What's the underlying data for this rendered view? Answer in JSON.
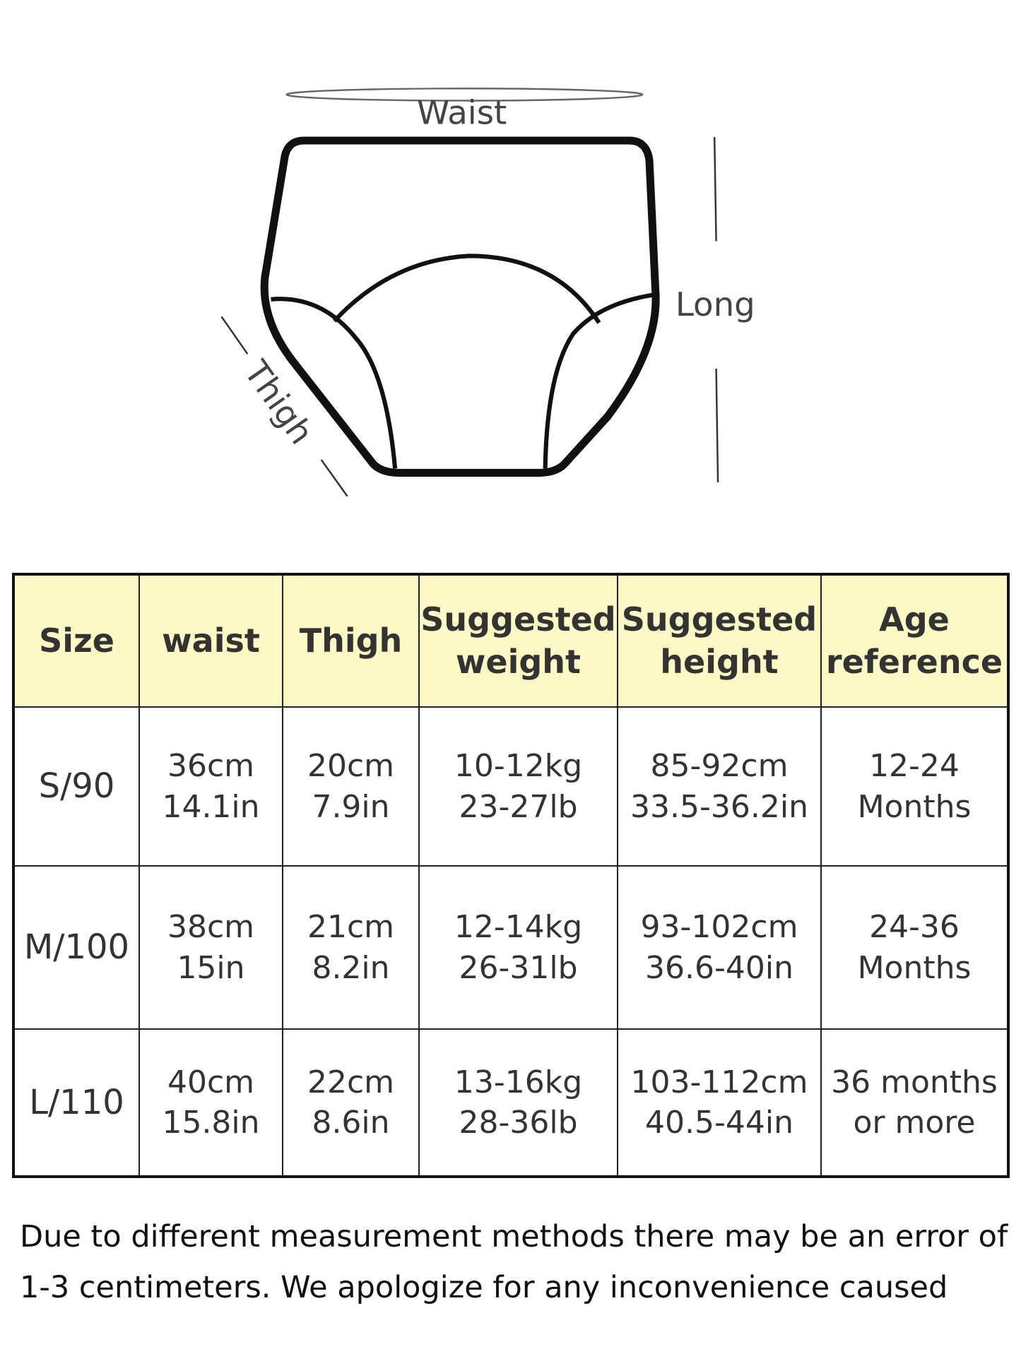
{
  "diagram": {
    "labels": {
      "waist": "Waist",
      "long": "Long",
      "thigh": "Thigh"
    }
  },
  "table": {
    "header": [
      [
        "Size"
      ],
      [
        "waist"
      ],
      [
        "Thigh"
      ],
      [
        "Suggested",
        "weight"
      ],
      [
        "Suggested",
        "height"
      ],
      [
        "Age",
        "reference"
      ]
    ],
    "rows": [
      [
        [
          "S/90"
        ],
        [
          "36cm",
          "14.1in"
        ],
        [
          "20cm",
          "7.9in"
        ],
        [
          "10-12kg",
          "23-27lb"
        ],
        [
          "85-92cm",
          "33.5-36.2in"
        ],
        [
          "12-24",
          "Months"
        ]
      ],
      [
        [
          "M/100"
        ],
        [
          "38cm",
          "15in"
        ],
        [
          "21cm",
          "8.2in"
        ],
        [
          "12-14kg",
          "26-31lb"
        ],
        [
          "93-102cm",
          "36.6-40in"
        ],
        [
          "24-36",
          "Months"
        ]
      ],
      [
        [
          "L/110"
        ],
        [
          "40cm",
          "15.8in"
        ],
        [
          "22cm",
          "8.6in"
        ],
        [
          "13-16kg",
          "28-36lb"
        ],
        [
          "103-112cm",
          "40.5-44in"
        ],
        [
          "36 months",
          "or more"
        ]
      ]
    ]
  },
  "footnote": [
    "Due to different measurement methods there may be an error of",
    "1-3 centimeters. We apologize for any inconvenience caused"
  ]
}
